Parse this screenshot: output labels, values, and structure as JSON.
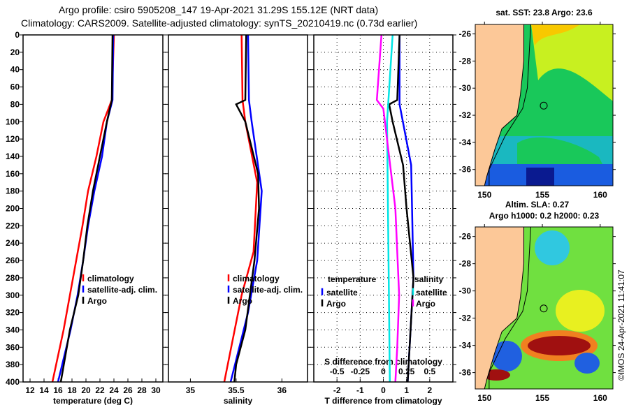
{
  "title_line1": "Argo profile: csiro 5905208_147 19-Apr-2021 31.29S 155.12E (NRT data)",
  "title_line2": "Climatology: CARS2009. Satellite-adjusted climatology: synTS_20210419.nc (0.73d earlier)",
  "copyright": "©IMOS 24-Apr-2021 11:41:07",
  "colors": {
    "climatology": "#ff0000",
    "satellite": "#0000ff",
    "argo": "#000000",
    "s_sat": "#00e5e5",
    "s_argo": "#ff00ff",
    "land": "#fcc898"
  },
  "chart_data": [
    {
      "type": "line",
      "id": "temp",
      "xlabel": "temperature (deg C)",
      "ylabel": "depth",
      "xlim": [
        11,
        31
      ],
      "ylim": [
        400,
        0
      ],
      "xticks": [
        12,
        14,
        16,
        18,
        20,
        22,
        24,
        26,
        28,
        30
      ],
      "yticks": [
        0,
        20,
        40,
        60,
        80,
        100,
        120,
        140,
        160,
        180,
        200,
        220,
        240,
        260,
        280,
        300,
        320,
        340,
        360,
        380,
        400
      ],
      "legend": [
        "climatology",
        "satellite-adj. clim.",
        "Argo"
      ],
      "series": [
        {
          "name": "climatology",
          "color": "#ff0000",
          "depth": [
            0,
            75,
            100,
            140,
            180,
            220,
            260,
            300,
            340,
            400
          ],
          "values": [
            24.0,
            23.7,
            22.5,
            21.5,
            20.3,
            19.5,
            18.6,
            17.7,
            16.8,
            15.2
          ]
        },
        {
          "name": "satellite-adj. clim.",
          "color": "#0000ff",
          "depth": [
            0,
            75,
            100,
            140,
            180,
            220,
            260,
            300,
            340,
            400
          ],
          "values": [
            23.9,
            23.8,
            23.0,
            22.3,
            21.2,
            20.3,
            19.6,
            18.8,
            17.8,
            16.0
          ]
        },
        {
          "name": "Argo",
          "color": "#000000",
          "depth": [
            0,
            75,
            100,
            140,
            180,
            220,
            260,
            300,
            340,
            400
          ],
          "values": [
            23.8,
            23.7,
            23.0,
            22.0,
            21.0,
            20.2,
            19.6,
            18.9,
            17.7,
            16.4
          ]
        }
      ]
    },
    {
      "type": "line",
      "id": "sal",
      "xlabel": "salinity",
      "ylabel": "depth",
      "xlim": [
        34.76,
        36.28
      ],
      "ylim": [
        400,
        0
      ],
      "xticks": [
        35,
        35.5,
        36
      ],
      "yticks": [
        0,
        20,
        40,
        60,
        80,
        100,
        120,
        140,
        160,
        180,
        200,
        220,
        240,
        260,
        280,
        300,
        320,
        340,
        360,
        380,
        400
      ],
      "legend": [
        "climatology",
        "satellite-adj. clim.",
        "Argo"
      ],
      "series": [
        {
          "name": "climatology",
          "color": "#ff0000",
          "depth": [
            0,
            75,
            100,
            170,
            250,
            300,
            400
          ],
          "values": [
            35.56,
            35.57,
            35.6,
            35.73,
            35.69,
            35.56,
            35.37
          ]
        },
        {
          "name": "satellite-adj. clim.",
          "color": "#0000ff",
          "depth": [
            0,
            75,
            100,
            180,
            260,
            320,
            400
          ],
          "values": [
            35.63,
            35.64,
            35.67,
            35.78,
            35.73,
            35.63,
            35.44
          ]
        },
        {
          "name": "Argo",
          "color": "#000000",
          "depth": [
            0,
            75,
            80,
            100,
            160,
            200,
            260,
            340,
            380,
            400
          ],
          "values": [
            35.61,
            35.6,
            35.5,
            35.6,
            35.74,
            35.75,
            35.7,
            35.6,
            35.5,
            35.48
          ]
        }
      ]
    },
    {
      "type": "line",
      "id": "diff",
      "xlabel": "T difference from climatology",
      "x2label": "S difference from climatology",
      "ylabel": "depth",
      "xlim": [
        -3,
        3
      ],
      "x2lim": [
        -0.75,
        0.75
      ],
      "ylim": [
        400,
        0
      ],
      "xticks": [
        -2,
        -1,
        0,
        1,
        2
      ],
      "x2ticks": [
        -0.5,
        -0.25,
        0,
        0.25,
        0.5
      ],
      "yticks": [
        0,
        20,
        40,
        60,
        80,
        100,
        120,
        140,
        160,
        180,
        200,
        220,
        240,
        260,
        280,
        300,
        320,
        340,
        360,
        380,
        400
      ],
      "legend_t": {
        "title": "temperature",
        "items": [
          "satellite",
          "Argo"
        ]
      },
      "legend_s": {
        "title": "salinity",
        "items": [
          "satellite",
          "Argo"
        ]
      },
      "series": [
        {
          "name": "T satellite",
          "axis": "T",
          "color": "#0000ff",
          "depth": [
            0,
            80,
            150,
            280,
            400
          ],
          "values": [
            0.7,
            0.7,
            1.2,
            1.3,
            1.05
          ]
        },
        {
          "name": "T Argo",
          "axis": "T",
          "color": "#000000",
          "depth": [
            0,
            75,
            80,
            100,
            150,
            200,
            280,
            400
          ],
          "values": [
            0.7,
            0.6,
            0.25,
            0.4,
            0.85,
            1.0,
            1.3,
            1.05
          ]
        },
        {
          "name": "S satellite",
          "axis": "S",
          "color": "#00e5e5",
          "depth": [
            0,
            100,
            400
          ],
          "values": [
            0.1,
            0.04,
            0.07
          ]
        },
        {
          "name": "S Argo",
          "axis": "S",
          "color": "#ff00ff",
          "depth": [
            0,
            75,
            85,
            200,
            300,
            360,
            400
          ],
          "values": [
            -0.02,
            -0.07,
            0.0,
            0.13,
            0.17,
            0.15,
            0.13
          ]
        }
      ]
    }
  ],
  "maps": [
    {
      "id": "sst",
      "title": "sat. SST: 23.8 Argo: 23.6",
      "lat_ticks": [
        -26,
        -28,
        -30,
        -32,
        -34,
        -36
      ],
      "lon_ticks": [
        150,
        155,
        160
      ],
      "lon": [
        149.2,
        161.1
      ],
      "lat": [
        -25.3,
        -37.2
      ],
      "argo_lon": 155.12,
      "argo_lat": -31.29
    },
    {
      "id": "sla",
      "title1": "Altim. SLA: 0.27",
      "title2": "Argo h1000: 0.2 h2000: 0.23",
      "lat_ticks": [
        -26,
        -28,
        -30,
        -32,
        -34,
        -36
      ],
      "lon_ticks": [
        150,
        155,
        160
      ],
      "lon": [
        149.2,
        161.1
      ],
      "lat": [
        -25.3,
        -37.2
      ],
      "argo_lon": 155.12,
      "argo_lat": -31.29
    }
  ]
}
